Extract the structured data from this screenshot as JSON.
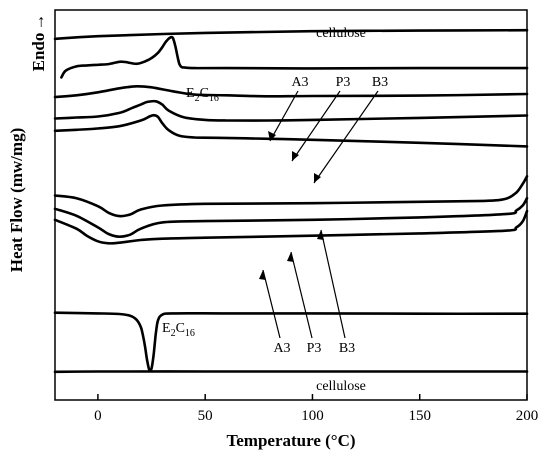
{
  "chart_data": {
    "type": "line",
    "title": "",
    "xlabel": "Temperature (°C)",
    "ylabel": "Heat Flow (mw/mg)",
    "endo_label": "Endo",
    "endo_arrow": "→",
    "xlim": [
      -20,
      200
    ],
    "xticks": [
      0,
      50,
      100,
      150,
      200
    ],
    "y_units": "arbitrary (curves vertically offset)",
    "series": [
      {
        "id": "heating-cellulose",
        "name": "cellulose",
        "label_on_chart": "cellulose",
        "x": [
          -20,
          0,
          50,
          100,
          150,
          200
        ],
        "y": [
          48.8,
          49.6,
          50.6,
          51.1,
          51.3,
          51.4
        ]
      },
      {
        "id": "heating-e2c16",
        "name": "E2C16",
        "label_prefix": "E",
        "label_sub1": "2",
        "label_mid": "C",
        "label_sub2": "16",
        "x": [
          -17,
          -15,
          -10,
          -5,
          0,
          5,
          10,
          13,
          18,
          22,
          25,
          28,
          30,
          32,
          34,
          35,
          36,
          37,
          38,
          39,
          40,
          45,
          60,
          100,
          150,
          200
        ],
        "y": [
          37.2,
          39.2,
          40.5,
          40.8,
          41.0,
          41.2,
          41.9,
          41.8,
          41.3,
          42.0,
          43.0,
          44.6,
          46.3,
          48.2,
          49.3,
          49.0,
          46.9,
          43.8,
          41.2,
          40.3,
          40.2,
          40.0,
          40.0,
          39.9,
          40.0,
          40.0
        ]
      },
      {
        "id": "heating-a3",
        "name": "A3",
        "label_on_chart": "A3",
        "x": [
          -20,
          -10,
          0,
          10,
          18,
          25,
          35,
          45,
          60,
          80,
          100,
          150,
          200
        ],
        "y": [
          31.3,
          31.8,
          32.7,
          33.9,
          34.5,
          34.2,
          33.0,
          32.0,
          31.8,
          31.5,
          31.6,
          31.7,
          32.2
        ]
      },
      {
        "id": "heating-p3",
        "name": "P3",
        "label_on_chart": "P3",
        "x": [
          -20,
          -10,
          0,
          10,
          16,
          20,
          23,
          27,
          30,
          33,
          40,
          50,
          60,
          80,
          100,
          150,
          200
        ],
        "y": [
          24.8,
          25.1,
          25.4,
          26.5,
          28.0,
          29.0,
          29.8,
          30.0,
          29.0,
          27.2,
          25.2,
          24.4,
          24.2,
          24.2,
          24.4,
          25.0,
          25.7
        ]
      },
      {
        "id": "heating-b3",
        "name": "B3",
        "label_on_chart": "B3",
        "x": [
          -20,
          -10,
          0,
          10,
          20,
          24,
          26,
          28,
          30,
          33,
          38,
          45,
          55,
          80,
          100,
          150,
          200
        ],
        "y": [
          21.1,
          21.4,
          21.8,
          22.5,
          24.2,
          25.4,
          25.8,
          25.3,
          23.4,
          21.3,
          19.6,
          19.1,
          19.0,
          18.7,
          18.4,
          17.5,
          16.4
        ]
      },
      {
        "id": "cooling-b3",
        "name": "B3",
        "label_on_chart": "B3",
        "x": [
          -20,
          -10,
          0,
          5,
          10,
          15,
          20,
          30,
          50,
          100,
          150,
          180,
          190,
          195,
          198,
          200
        ],
        "y": [
          1.6,
          0.8,
          -1.6,
          -3.6,
          -4.6,
          -4.1,
          -2.6,
          -1.4,
          -0.9,
          -0.7,
          -0.3,
          0.0,
          0.6,
          2.5,
          5.1,
          7.4
        ]
      },
      {
        "id": "cooling-p3",
        "name": "P3",
        "label_on_chart": "P3",
        "x": [
          -20,
          -10,
          0,
          5,
          10,
          15,
          20,
          30,
          50,
          100,
          150,
          190,
          195,
          198,
          200
        ],
        "y": [
          -2.4,
          -4.5,
          -8.0,
          -10.0,
          -10.8,
          -10.2,
          -8.4,
          -6.5,
          -6.1,
          -5.7,
          -5.0,
          -4.0,
          -2.9,
          -1.4,
          0.8
        ]
      },
      {
        "id": "cooling-a3",
        "name": "A3",
        "label_on_chart": "A3",
        "x": [
          -20,
          -10,
          -5,
          0,
          5,
          10,
          20,
          30,
          50,
          100,
          150,
          190,
          195,
          198,
          200
        ],
        "y": [
          -5.7,
          -8.4,
          -10.6,
          -12.2,
          -12.8,
          -12.6,
          -11.8,
          -11.4,
          -11.1,
          -10.5,
          -9.8,
          -9.0,
          -8.0,
          -6.2,
          -3.1
        ]
      },
      {
        "id": "cooling-e2c16",
        "name": "E2C16",
        "label_prefix": "E",
        "label_sub1": "2",
        "label_mid": "C",
        "label_sub2": "16",
        "x": [
          -20,
          0,
          10,
          15,
          18,
          20,
          21,
          22,
          23,
          24,
          25,
          26,
          27,
          28,
          30,
          35,
          60,
          100,
          150,
          200
        ],
        "y": [
          -33.7,
          -33.9,
          -34.1,
          -34.6,
          -35.8,
          -38.0,
          -40.6,
          -44.0,
          -48.3,
          -51.0,
          -50.5,
          -46.2,
          -40.0,
          -36.0,
          -34.3,
          -33.9,
          -33.9,
          -33.9,
          -34.0,
          -34.0
        ]
      },
      {
        "id": "cooling-cellulose",
        "name": "cellulose",
        "label_on_chart": "cellulose",
        "x": [
          -20,
          0,
          50,
          100,
          150,
          200
        ],
        "y": [
          -51.5,
          -51.4,
          -51.4,
          -51.4,
          -51.4,
          -51.4
        ]
      }
    ]
  }
}
